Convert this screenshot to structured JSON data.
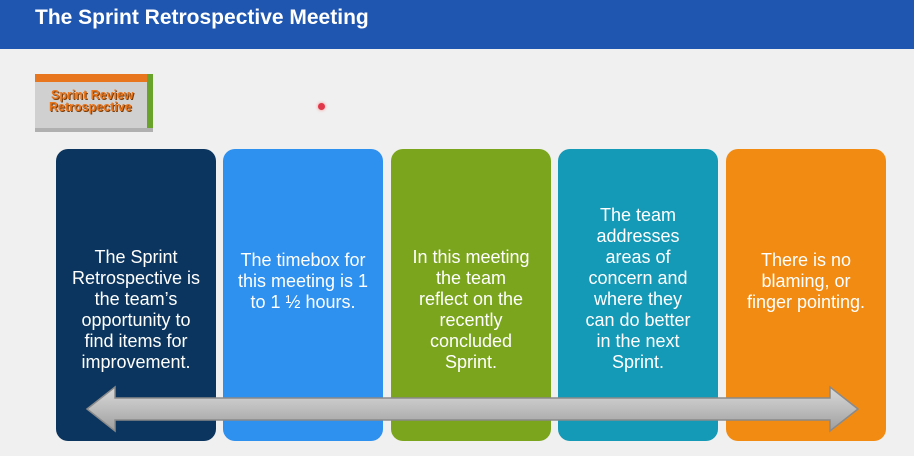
{
  "header": {
    "title": "The Sprint Retrospective Meeting"
  },
  "logo": {
    "line1": "Sprint Review",
    "line2": "Retrospective"
  },
  "cards": [
    {
      "text": "The Sprint\nRetrospective is\nthe team’s\nopportunity to\nfind items for\nimprovement.",
      "color": "#0b355e"
    },
    {
      "text": "The timebox for\nthis meeting is 1\nto 1 ½ hours.",
      "color": "#2e90ef"
    },
    {
      "text": "In this meeting\nthe team\nreflect on the\nrecently\nconcluded\nSprint.",
      "color": "#7aa51c"
    },
    {
      "text": "The team\naddresses\nareas of\nconcern and\nwhere they\ncan do better\nin the next\nSprint.",
      "color": "#1499b6"
    },
    {
      "text": "There is no\nblaming, or\nfinger pointing.",
      "color": "#f28b12"
    }
  ]
}
